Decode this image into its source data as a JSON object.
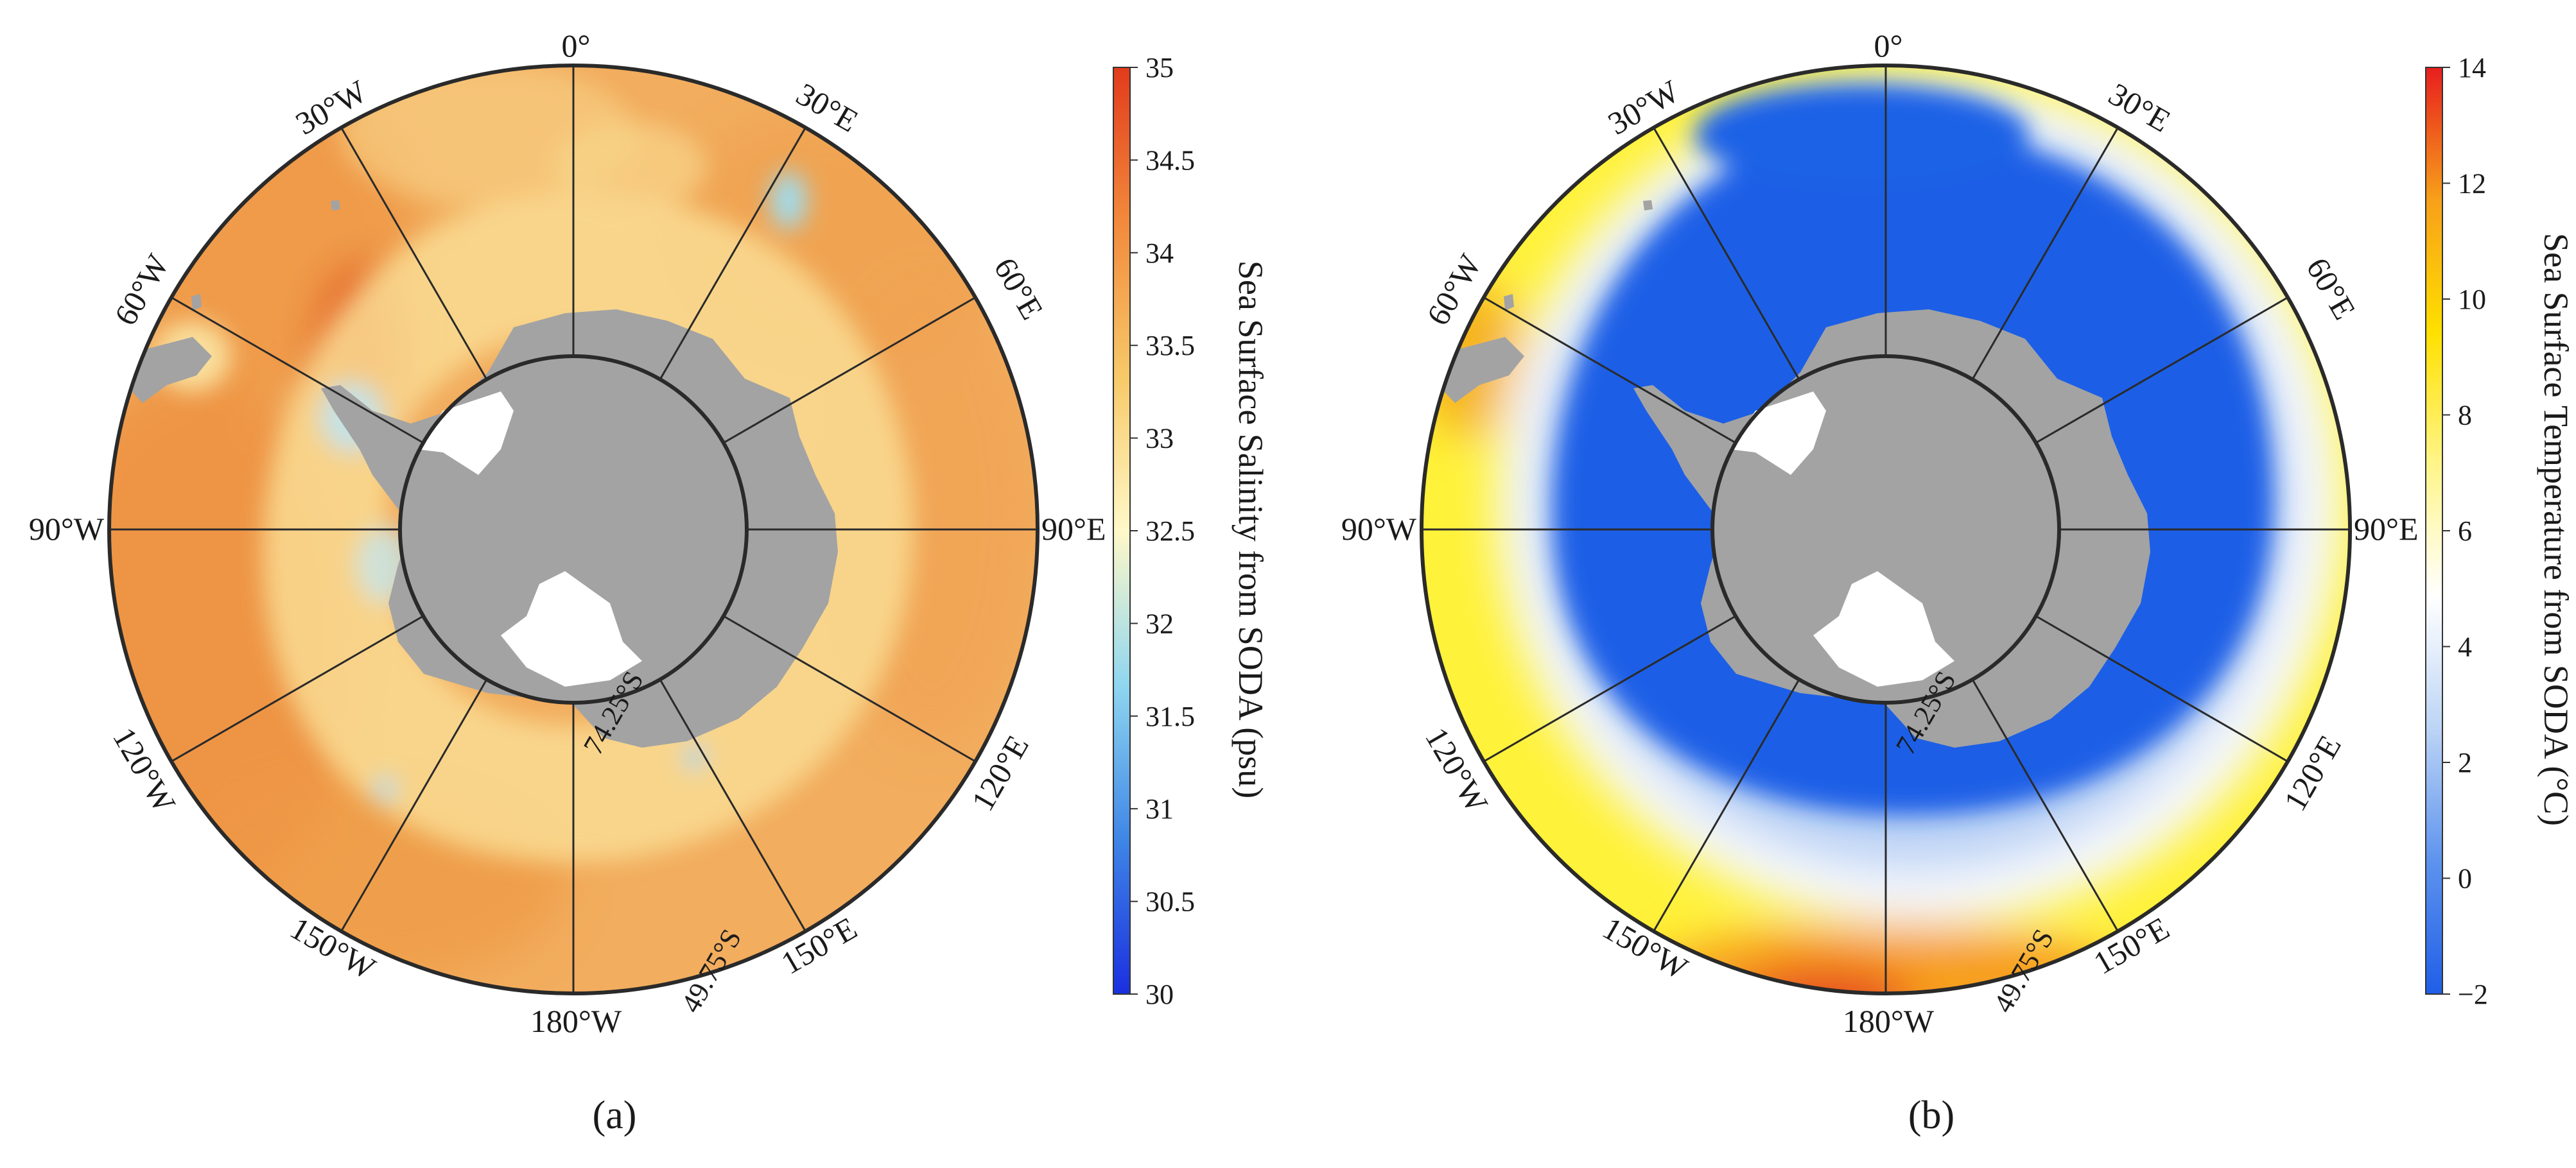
{
  "panels": [
    {
      "id": "a",
      "panel_label": "(a)",
      "variable": "Sea Surface Salinity from SODA (psu)",
      "colorbar": {
        "ticks": [
          "35",
          "34.5",
          "34",
          "33.5",
          "33",
          "32.5",
          "32",
          "31.5",
          "31",
          "30.5",
          "30"
        ],
        "min": 30,
        "max": 35,
        "colors": [
          "#1a2fe0",
          "#3f86e6",
          "#8fd6f0",
          "#fff8c8",
          "#f7c968",
          "#f28a3c",
          "#e23b1c"
        ]
      },
      "ocean_base_color": "#f2ad5e",
      "longitude_labels": [
        "0°",
        "30°E",
        "60°E",
        "90°E",
        "120°E",
        "150°E",
        "180°W",
        "150°W",
        "120°W",
        "90°W",
        "60°W",
        "30°W"
      ],
      "latitude_labels": [
        "74.25°S",
        "49.75°S"
      ]
    },
    {
      "id": "b",
      "panel_label": "(b)",
      "variable": "Sea Surface Temperature from SODA (°C)",
      "colorbar": {
        "ticks": [
          "14",
          "12",
          "10",
          "8",
          "6",
          "4",
          "2",
          "0",
          "−2"
        ],
        "min": -2,
        "max": 14,
        "colors": [
          "#1f5ee8",
          "#5d93ee",
          "#bcd4f5",
          "#ffffff",
          "#fff58a",
          "#ffe000",
          "#f7a01a",
          "#e81e1e"
        ]
      },
      "ocean_base_color": "#1b5ee6",
      "longitude_labels": [
        "0°",
        "30°E",
        "60°E",
        "90°E",
        "120°E",
        "150°E",
        "180°W",
        "150°W",
        "120°W",
        "90°W",
        "60°W",
        "30°W"
      ],
      "latitude_labels": [
        "74.25°S",
        "49.75°S"
      ]
    }
  ],
  "colors": {
    "land": "#a3a3a3",
    "ice_shelf": "#ffffff",
    "grid": "#2a2a2a"
  }
}
